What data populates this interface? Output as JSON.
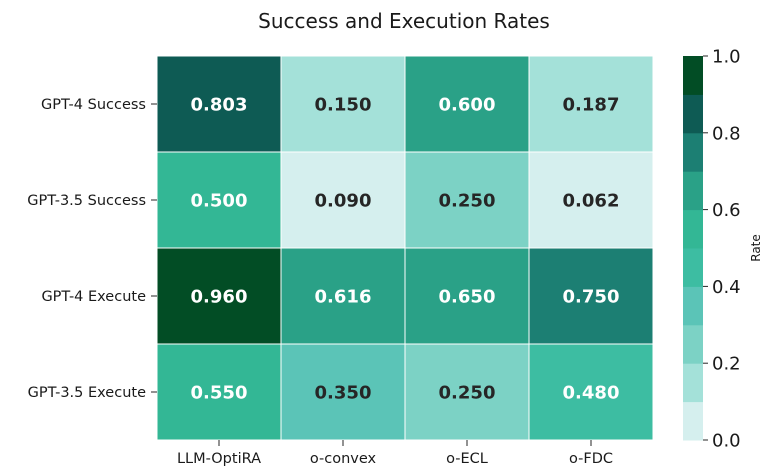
{
  "chart_data": {
    "type": "heatmap",
    "title": "Success and Execution Rates",
    "rows": [
      "GPT-4 Success",
      "GPT-3.5 Success",
      "GPT-4 Execute",
      "GPT-3.5 Execute"
    ],
    "columns": [
      "LLM-OptiRA",
      "o-convex",
      "o-ECL",
      "o-FDC"
    ],
    "values": [
      [
        0.803,
        0.15,
        0.6,
        0.187
      ],
      [
        0.5,
        0.09,
        0.25,
        0.062
      ],
      [
        0.96,
        0.616,
        0.65,
        0.75
      ],
      [
        0.55,
        0.35,
        0.25,
        0.48
      ]
    ],
    "value_labels": [
      [
        "0.803",
        "0.150",
        "0.600",
        "0.187"
      ],
      [
        "0.500",
        "0.090",
        "0.250",
        "0.062"
      ],
      [
        "0.960",
        "0.616",
        "0.650",
        "0.750"
      ],
      [
        "0.550",
        "0.350",
        "0.250",
        "0.480"
      ]
    ],
    "colorbar": {
      "label": "Rate",
      "range": [
        0.0,
        1.0
      ],
      "ticks": [
        0.0,
        0.2,
        0.4,
        0.6,
        0.8,
        1.0
      ],
      "tick_labels": [
        "0.0",
        "0.2",
        "0.4",
        "0.6",
        "0.8",
        "1.0"
      ],
      "levels": 10,
      "colors": [
        "#d5efee",
        "#a4e1d9",
        "#7cd2c5",
        "#5bc4b7",
        "#3dbda2",
        "#33b795",
        "#2aa187",
        "#1c7f73",
        "#0e5b54",
        "#024d25"
      ]
    },
    "text_colors": {
      "dark": "#262626",
      "light": "#ffffff"
    }
  }
}
